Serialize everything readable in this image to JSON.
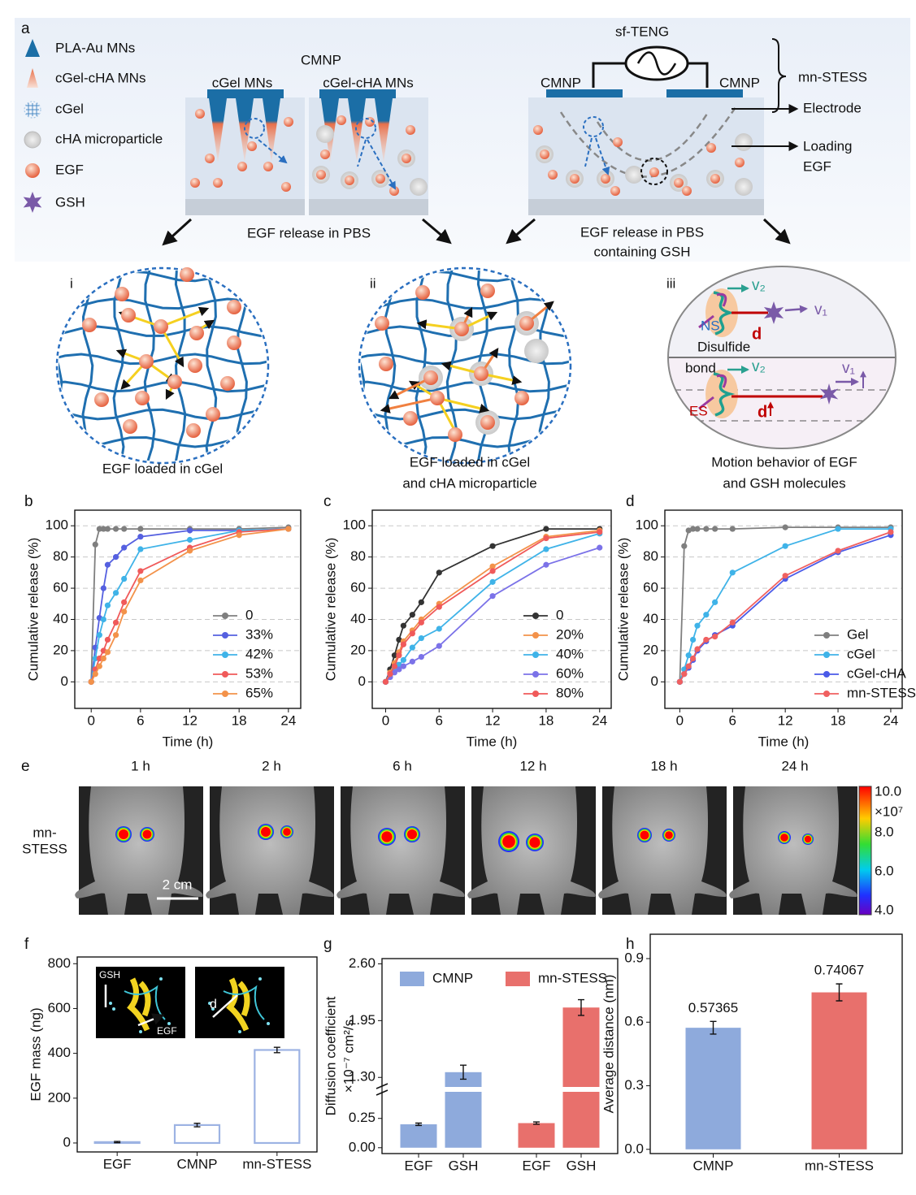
{
  "panel_a": {
    "label": "a",
    "legend": [
      "PLA-Au MNs",
      "cGel-cHA MNs",
      "cGel",
      "cHA microparticle",
      "EGF",
      "GSH"
    ],
    "left_box": {
      "title": "CMNP",
      "labels": [
        "cGel MNs",
        "cGel-cHA MNs"
      ],
      "caption": [
        "EGF release in PBS"
      ]
    },
    "right_box": {
      "source": "sf-TENG",
      "labels": [
        "CMNP",
        "CMNP"
      ],
      "system": "mn-STESS",
      "callouts": [
        "Electrode",
        "Loading",
        "EGF"
      ],
      "caption": [
        "EGF release in PBS",
        "containing GSH"
      ]
    },
    "insets": [
      {
        "label": "i",
        "caption": [
          "EGF loaded in cGel"
        ]
      },
      {
        "label": "ii",
        "caption": [
          "EGF loaded in cGel",
          "and cHA microparticle"
        ]
      },
      {
        "label": "iii",
        "caption": [
          "Motion behavior of EGF",
          "and GSH molecules"
        ],
        "annotations": [
          "NS",
          "v₂",
          "v₁",
          "d",
          "Disulfide",
          "bond",
          "v₂",
          "v₁",
          "d",
          "ES"
        ]
      }
    ]
  },
  "panel_e": {
    "label": "e",
    "times": [
      "1 h",
      "2 h",
      "6 h",
      "12 h",
      "18 h",
      "24 h"
    ],
    "row_label": [
      "mn-",
      "STESS"
    ],
    "scale_bar": "2 cm",
    "colorbar": {
      "ticks": [
        "10.0",
        "8.0",
        "6.0",
        "4.0"
      ],
      "exponent": "×10⁷"
    }
  },
  "chart_data": [
    {
      "panel": "b",
      "type": "line",
      "x": [
        0,
        0.5,
        1,
        1.5,
        2,
        3,
        4,
        6,
        12,
        18,
        24
      ],
      "xlim": [
        -2,
        25.5
      ],
      "xticks": [
        0,
        6,
        12,
        18,
        24
      ],
      "ylim": [
        -17,
        110
      ],
      "yticks": [
        0,
        20,
        40,
        60,
        80,
        100
      ],
      "grid": true,
      "legend": "lower right",
      "x_label": "Time (h)",
      "y_label": "Cumulative release (%)",
      "series": [
        {
          "name": "0",
          "color": "#7f7f7f",
          "values": [
            0,
            88,
            98,
            98,
            98,
            98,
            98,
            98,
            98,
            98,
            99
          ]
        },
        {
          "name": "33%",
          "color": "#5560e0",
          "values": [
            0,
            22,
            41,
            60,
            75,
            80,
            86,
            93,
            97,
            97,
            98
          ]
        },
        {
          "name": "42%",
          "color": "#3fb3e8",
          "values": [
            0,
            15,
            30,
            40,
            49,
            57,
            66,
            85,
            91,
            97,
            98
          ]
        },
        {
          "name": "53%",
          "color": "#f05a5a",
          "values": [
            0,
            8,
            15,
            20,
            27,
            38,
            51,
            71,
            86,
            96,
            98
          ]
        },
        {
          "name": "65%",
          "color": "#f3924a",
          "values": [
            0,
            5,
            10,
            15,
            19,
            30,
            45,
            65,
            84,
            94,
            98
          ]
        }
      ]
    },
    {
      "panel": "c",
      "type": "line",
      "x": [
        0,
        0.5,
        1,
        1.5,
        2,
        3,
        4,
        6,
        12,
        18,
        24
      ],
      "xlim": [
        -1.5,
        25.3
      ],
      "xticks": [
        0,
        6,
        12,
        18,
        24
      ],
      "ylim": [
        -17,
        110
      ],
      "yticks": [
        0,
        20,
        40,
        60,
        80,
        100
      ],
      "grid": true,
      "legend": "lower right",
      "x_label": "Time (h)",
      "y_label": "Cumulative release (%)",
      "series": [
        {
          "name": "0",
          "color": "#333333",
          "values": [
            0,
            8,
            17,
            27,
            36,
            43,
            51,
            70,
            87,
            98,
            98
          ]
        },
        {
          "name": "20%",
          "color": "#f3924a",
          "values": [
            0,
            6,
            12,
            19,
            26,
            33,
            40,
            50,
            74,
            93,
            97
          ]
        },
        {
          "name": "40%",
          "color": "#3fb3e8",
          "values": [
            0,
            4,
            8,
            11,
            14,
            22,
            28,
            34,
            64,
            85,
            95
          ]
        },
        {
          "name": "60%",
          "color": "#7b72e8",
          "values": [
            0,
            3,
            6,
            8,
            10,
            13,
            16,
            23,
            55,
            75,
            86
          ]
        },
        {
          "name": "80%",
          "color": "#f05a5a",
          "values": [
            0,
            5,
            10,
            17,
            24,
            31,
            38,
            48,
            71,
            92,
            96
          ]
        }
      ]
    },
    {
      "panel": "d",
      "type": "line",
      "x": [
        0,
        0.5,
        1,
        1.5,
        2,
        3,
        4,
        6,
        12,
        18,
        24
      ],
      "xlim": [
        -1.7,
        25.3
      ],
      "xticks": [
        0,
        6,
        12,
        18,
        24
      ],
      "ylim": [
        -17,
        110
      ],
      "yticks": [
        0,
        20,
        40,
        60,
        80,
        100
      ],
      "grid": true,
      "legend": "lower right",
      "x_label": "Time (h)",
      "y_label": "Cumulative release (%)",
      "series": [
        {
          "name": "Gel",
          "color": "#7f7f7f",
          "values": [
            0,
            87,
            97,
            98,
            98,
            98,
            98,
            98,
            99,
            99,
            99
          ]
        },
        {
          "name": "cGel",
          "color": "#3fb3e8",
          "values": [
            0,
            8,
            17,
            27,
            36,
            43,
            51,
            70,
            87,
            98,
            98
          ]
        },
        {
          "name": "cGel-cHA",
          "color": "#4a5ae8",
          "values": [
            0,
            5,
            9,
            14,
            20,
            26,
            30,
            36,
            66,
            83,
            94
          ]
        },
        {
          "name": "mn-STESS",
          "color": "#f06060",
          "values": [
            0,
            5,
            10,
            15,
            21,
            27,
            29,
            38,
            68,
            84,
            96
          ]
        }
      ]
    },
    {
      "panel": "f",
      "type": "bar",
      "categories": [
        "EGF",
        "CMNP",
        "mn-STESS"
      ],
      "values": [
        4,
        80,
        415
      ],
      "errors": [
        3,
        8,
        12
      ],
      "color": "#9db3e3",
      "bar_style": "outline",
      "ylim": [
        -40,
        830
      ],
      "yticks": [
        0,
        200,
        400,
        600,
        800
      ],
      "y_label": "EGF mass (ng)",
      "annotations": [
        "GSH",
        "EGF",
        "d"
      ]
    },
    {
      "panel": "g",
      "type": "bar",
      "categories": [
        "EGF",
        "GSH"
      ],
      "legend": "upper center",
      "series": [
        {
          "name": "CMNP",
          "color": "#8eaadc",
          "values": [
            0.2,
            1.36
          ],
          "errors": [
            0.01,
            0.08
          ]
        },
        {
          "name": "mn-STESS",
          "color": "#e8706c",
          "values": [
            0.21,
            2.1
          ],
          "errors": [
            0.01,
            0.09
          ]
        }
      ],
      "ylim": [
        -0.05,
        2.66
      ],
      "axis_break": [
        0.47,
        1.2
      ],
      "yticks": [
        {
          "value": 0,
          "label": "0.00"
        },
        {
          "value": 0.25,
          "label": "0.25"
        },
        {
          "value": 1.3,
          "label": "1.30"
        },
        {
          "value": 1.95,
          "label": "1.95"
        },
        {
          "value": 2.6,
          "label": "2.60"
        }
      ],
      "y_label": [
        "Diffusion coefficient",
        "×10⁻⁷ cm²/s"
      ]
    },
    {
      "panel": "h",
      "type": "bar",
      "categories": [
        "CMNP",
        "mn-STESS"
      ],
      "values": [
        0.57365,
        0.74067
      ],
      "errors": [
        0.03,
        0.04
      ],
      "colors": [
        "#8eaadc",
        "#e8706c"
      ],
      "data_labels": true,
      "ylim": [
        -0.02,
        1.015
      ],
      "yticks": [
        {
          "value": 0,
          "label": "0.0"
        },
        {
          "value": 0.3,
          "label": "0.3"
        },
        {
          "value": 0.6,
          "label": "0.6"
        },
        {
          "value": 0.9,
          "label": "0.9"
        }
      ],
      "y_label": "Average distance (nm)"
    }
  ]
}
